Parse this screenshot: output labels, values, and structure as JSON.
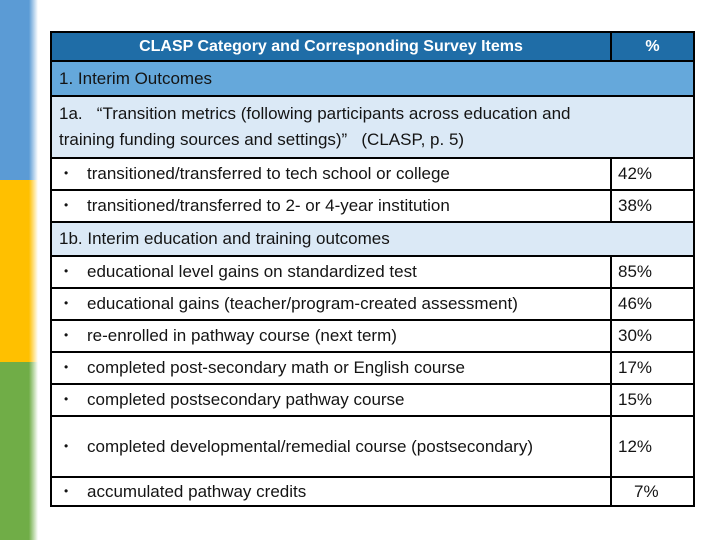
{
  "slide": {
    "type": "presentation-slide-table"
  },
  "colors": {
    "bg": "#ffffff",
    "header_bg": "#1f6da7",
    "header_text": "#ffffff",
    "section_bg": "#65a8db",
    "subsection_bg": "#dbe9f6",
    "row_bg": "#ffffff",
    "border": "#000000",
    "text": "#141414",
    "sidebar_blue": "#5b9bd5",
    "sidebar_yellow": "#ffc000",
    "sidebar_green": "#70ad47"
  },
  "icons": {
    "bullet": "•"
  },
  "table": {
    "header": {
      "category": "CLASP Category and Corresponding Survey Items",
      "percent": "%"
    },
    "rows": [
      {
        "type": "section",
        "label": "1. Interim Outcomes"
      },
      {
        "type": "subsection",
        "label": "1a.   “Transition metrics (following participants across education and\ntraining funding sources and settings)”   (CLASP, p. 5)"
      },
      {
        "type": "item",
        "label": "transitioned/transferred to tech school or college",
        "value": "42%"
      },
      {
        "type": "item",
        "label": "transitioned/transferred to 2- or 4-year institution",
        "value": "38%"
      },
      {
        "type": "subsection",
        "label": "1b. Interim education and training outcomes"
      },
      {
        "type": "item",
        "label": "educational level gains on standardized test",
        "value": "85%"
      },
      {
        "type": "item",
        "label": "educational gains (teacher/program-created assessment)",
        "value": "46%"
      },
      {
        "type": "item",
        "label": "re-enrolled in pathway course (next term)",
        "value": "30%"
      },
      {
        "type": "item",
        "label": "completed post-secondary math or English course",
        "value": "17%"
      },
      {
        "type": "item",
        "label": "completed postsecondary pathway course",
        "value": "15%"
      },
      {
        "type": "item",
        "label": "completed developmental/remedial course (postsecondary)",
        "value": "12%"
      },
      {
        "type": "item",
        "label": "accumulated pathway credits",
        "value": "7%"
      }
    ]
  }
}
